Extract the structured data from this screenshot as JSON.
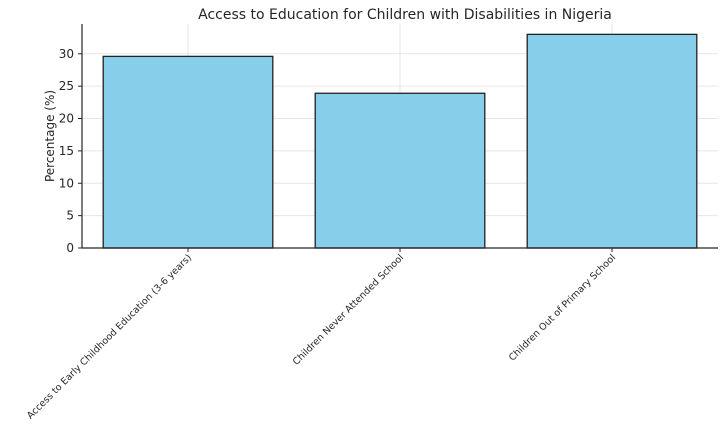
{
  "chart_data": {
    "type": "bar",
    "title": "Access to Education for Children with Disabilities in Nigeria",
    "xlabel": "",
    "ylabel": "Percentage (%)",
    "categories": [
      "Access to Early Childhood Education (3-6 years)",
      "Children Never Attended School",
      "Children Out of Primary School"
    ],
    "values": [
      29.6,
      23.9,
      33.0
    ],
    "ylim": [
      0,
      34.6
    ],
    "yticks": [
      0,
      5,
      10,
      15,
      20,
      25,
      30
    ],
    "grid": true,
    "bar_color": "#87ceeb",
    "edge_color": "#222222"
  }
}
